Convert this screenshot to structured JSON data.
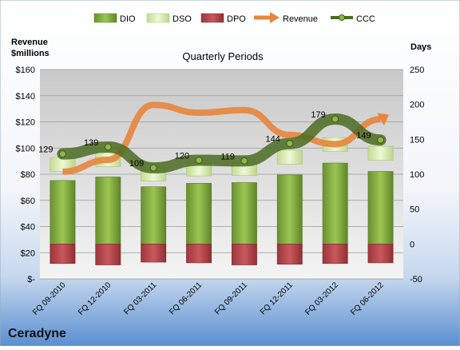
{
  "company": "Ceradyne",
  "chart_data": {
    "type": "bar",
    "title": "Quarterly Periods",
    "left_axis": {
      "label_line1": "Revenue",
      "label_line2": "$millions",
      "ticks": [
        "$-",
        "$20",
        "$40",
        "$60",
        "$80",
        "$100",
        "$120",
        "$140",
        "$160"
      ],
      "range": [
        0,
        160
      ]
    },
    "right_axis": {
      "label": "Days",
      "ticks": [
        "-50",
        "0",
        "50",
        "100",
        "150",
        "200",
        "250"
      ],
      "range": [
        -50,
        250
      ]
    },
    "categories": [
      "FQ 09-2010",
      "FQ 12-2010",
      "FQ 03-2011",
      "FQ 06-2011",
      "FQ 09-2011",
      "FQ 12-2011",
      "FQ 03-2012",
      "FQ 06-2012"
    ],
    "series": [
      {
        "name": "DIO",
        "axis": "right",
        "kind": "stacked-bar",
        "values": [
          91,
          96,
          82,
          87,
          88,
          99,
          116,
          104
        ]
      },
      {
        "name": "DSO",
        "axis": "right",
        "kind": "stacked-bar",
        "values": [
          66,
          70,
          56,
          61,
          60,
          71,
          73,
          72
        ]
      },
      {
        "name": "DPO",
        "axis": "right",
        "kind": "negative-bar",
        "values": [
          -28,
          -30,
          -26,
          -27,
          -30,
          -29,
          -28,
          -27
        ]
      },
      {
        "name": "Revenue",
        "axis": "left",
        "kind": "line",
        "values": [
          82,
          91,
          133,
          127,
          129,
          110,
          103,
          122
        ]
      },
      {
        "name": "CCC",
        "axis": "right",
        "kind": "line",
        "values": [
          129,
          139,
          109,
          120,
          119,
          144,
          179,
          149
        ]
      }
    ],
    "data_labels": [
      "129",
      "139",
      "109",
      "120",
      "119",
      "144",
      "179",
      "149"
    ],
    "legend_position": "top",
    "grid": true,
    "colors": {
      "DIO": "#7aa237",
      "DSO": "#d8ecac",
      "DPO": "#b5474b",
      "Revenue": "#e8853c",
      "CCC": "#4b6b22"
    }
  }
}
